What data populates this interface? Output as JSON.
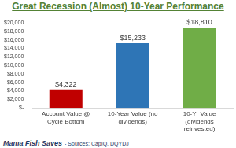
{
  "chart_data": {
    "type": "bar",
    "title": "Great Recession (Almost) 10-Year Performance",
    "categories": [
      "Account Value @ Cycle Bottom",
      "10-Year Value (no dividends)",
      "10-Yr Value (dividends reinvested)"
    ],
    "values": [
      4322,
      15233,
      18810
    ],
    "value_labels": [
      "$4,322",
      "$15,233",
      "$18,810"
    ],
    "colors": [
      "#c00000",
      "#2e75b6",
      "#70ad47"
    ],
    "ylim": [
      0,
      20000
    ],
    "yticks": [
      {
        "value": 0,
        "label": "$-"
      },
      {
        "value": 2000,
        "label": "$2,000"
      },
      {
        "value": 4000,
        "label": "$4,000"
      },
      {
        "value": 6000,
        "label": "$6,000"
      },
      {
        "value": 8000,
        "label": "$8,000"
      },
      {
        "value": 10000,
        "label": "$10,000"
      },
      {
        "value": 12000,
        "label": "$12,000"
      },
      {
        "value": 14000,
        "label": "$14,000"
      },
      {
        "value": 16000,
        "label": "$16,000"
      },
      {
        "value": 18000,
        "label": "$18,000"
      },
      {
        "value": 20000,
        "label": "$20,000"
      }
    ],
    "grid": false,
    "data_labels": true,
    "annotations": [
      "Mama Fish Saves",
      "- Sources: CapIQ, DQYDJ"
    ]
  }
}
